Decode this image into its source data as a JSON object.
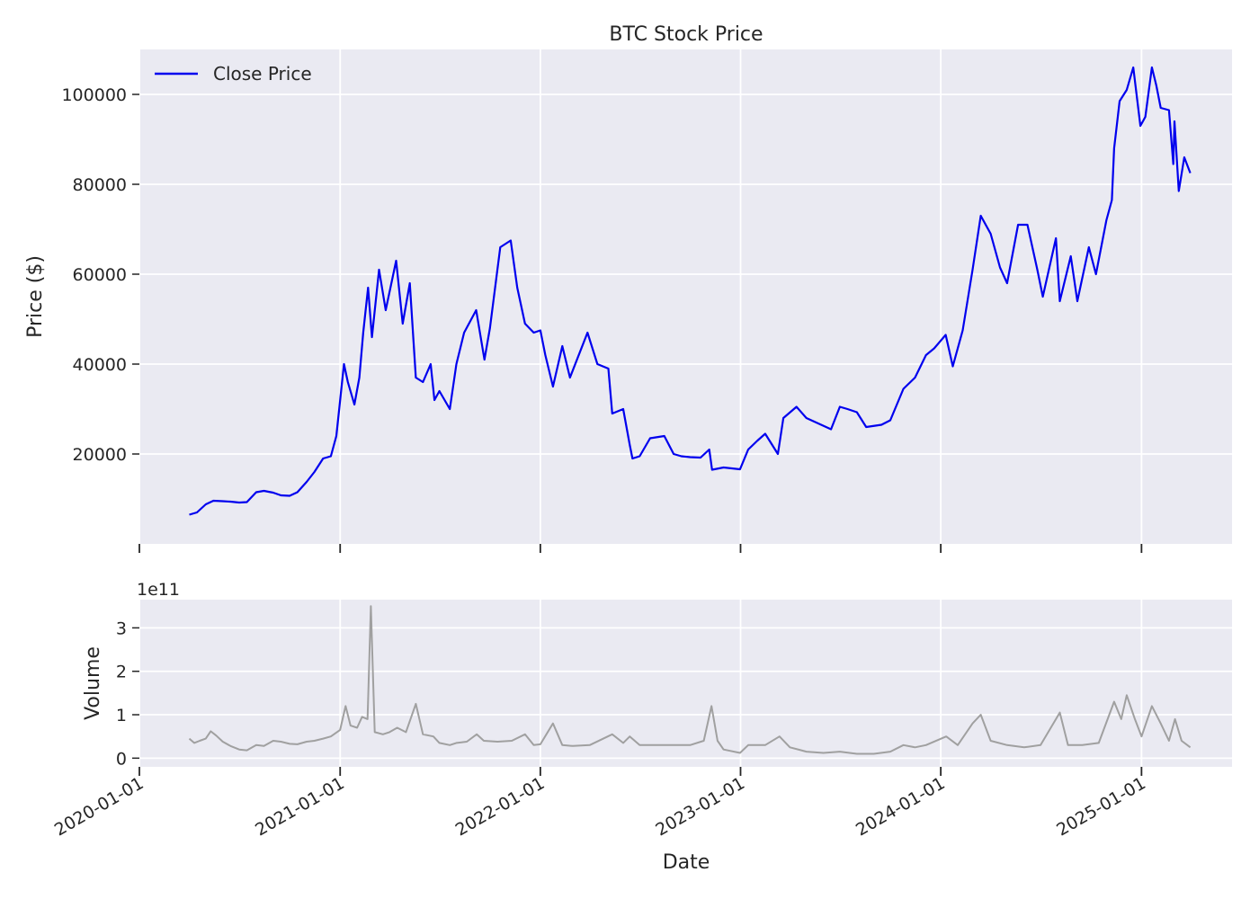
{
  "chart_data": {
    "type": "line",
    "title": "BTC Stock Price",
    "xlabel": "Date",
    "x_ticks": [
      "2020-01-01",
      "2021-01-01",
      "2022-01-01",
      "2023-01-01",
      "2024-01-01",
      "2025-01-01"
    ],
    "xlim": [
      "2020-01-01",
      "2025-06-15"
    ],
    "legend": {
      "position": "upper-left",
      "entries": [
        "Close Price"
      ]
    },
    "grid": true,
    "price_panel": {
      "ylabel": "Price ($)",
      "ylim": [
        0,
        110000
      ],
      "y_ticks": [
        "20000",
        "40000",
        "60000",
        "80000",
        "100000"
      ],
      "series": [
        {
          "name": "Close Price",
          "color": "#0000ee",
          "points": [
            [
              "2020-04-01",
              6500
            ],
            [
              "2020-04-15",
              7000
            ],
            [
              "2020-05-01",
              8800
            ],
            [
              "2020-05-15",
              9600
            ],
            [
              "2020-06-01",
              9500
            ],
            [
              "2020-06-15",
              9400
            ],
            [
              "2020-07-01",
              9200
            ],
            [
              "2020-07-15",
              9300
            ],
            [
              "2020-08-01",
              11500
            ],
            [
              "2020-08-15",
              11800
            ],
            [
              "2020-09-01",
              11400
            ],
            [
              "2020-09-15",
              10800
            ],
            [
              "2020-10-01",
              10700
            ],
            [
              "2020-10-15",
              11500
            ],
            [
              "2020-11-01",
              13800
            ],
            [
              "2020-11-15",
              16000
            ],
            [
              "2020-12-01",
              19000
            ],
            [
              "2020-12-15",
              19500
            ],
            [
              "2020-12-25",
              24000
            ],
            [
              "2021-01-08",
              40000
            ],
            [
              "2021-01-15",
              36000
            ],
            [
              "2021-01-27",
              31000
            ],
            [
              "2021-02-05",
              37000
            ],
            [
              "2021-02-12",
              47000
            ],
            [
              "2021-02-21",
              57000
            ],
            [
              "2021-02-28",
              46000
            ],
            [
              "2021-03-13",
              61000
            ],
            [
              "2021-03-25",
              52000
            ],
            [
              "2021-04-13",
              63000
            ],
            [
              "2021-04-25",
              49000
            ],
            [
              "2021-05-08",
              58000
            ],
            [
              "2021-05-19",
              37000
            ],
            [
              "2021-06-01",
              36000
            ],
            [
              "2021-06-15",
              40000
            ],
            [
              "2021-06-22",
              32000
            ],
            [
              "2021-07-01",
              34000
            ],
            [
              "2021-07-20",
              30000
            ],
            [
              "2021-08-01",
              40000
            ],
            [
              "2021-08-15",
              47000
            ],
            [
              "2021-09-06",
              52000
            ],
            [
              "2021-09-21",
              41000
            ],
            [
              "2021-10-01",
              48000
            ],
            [
              "2021-10-20",
              66000
            ],
            [
              "2021-11-08",
              67500
            ],
            [
              "2021-11-20",
              57000
            ],
            [
              "2021-12-04",
              49000
            ],
            [
              "2021-12-20",
              47000
            ],
            [
              "2022-01-01",
              47500
            ],
            [
              "2022-01-10",
              42000
            ],
            [
              "2022-01-24",
              35000
            ],
            [
              "2022-02-10",
              44000
            ],
            [
              "2022-02-24",
              37000
            ],
            [
              "2022-03-28",
              47000
            ],
            [
              "2022-04-15",
              40000
            ],
            [
              "2022-05-05",
              39000
            ],
            [
              "2022-05-12",
              29000
            ],
            [
              "2022-06-01",
              30000
            ],
            [
              "2022-06-13",
              22000
            ],
            [
              "2022-06-18",
              19000
            ],
            [
              "2022-07-01",
              19500
            ],
            [
              "2022-07-20",
              23500
            ],
            [
              "2022-08-15",
              24000
            ],
            [
              "2022-09-01",
              20000
            ],
            [
              "2022-09-15",
              19500
            ],
            [
              "2022-10-01",
              19300
            ],
            [
              "2022-10-20",
              19200
            ],
            [
              "2022-11-05",
              21000
            ],
            [
              "2022-11-10",
              16500
            ],
            [
              "2022-12-01",
              17000
            ],
            [
              "2022-12-31",
              16600
            ],
            [
              "2023-01-15",
              21000
            ],
            [
              "2023-02-01",
              23000
            ],
            [
              "2023-02-15",
              24500
            ],
            [
              "2023-03-10",
              20000
            ],
            [
              "2023-03-20",
              28000
            ],
            [
              "2023-04-13",
              30500
            ],
            [
              "2023-05-01",
              28000
            ],
            [
              "2023-06-15",
              25500
            ],
            [
              "2023-07-01",
              30500
            ],
            [
              "2023-07-15",
              30000
            ],
            [
              "2023-08-01",
              29300
            ],
            [
              "2023-08-18",
              26000
            ],
            [
              "2023-09-15",
              26500
            ],
            [
              "2023-10-01",
              27500
            ],
            [
              "2023-10-25",
              34500
            ],
            [
              "2023-11-15",
              37000
            ],
            [
              "2023-12-05",
              42000
            ],
            [
              "2023-12-20",
              43500
            ],
            [
              "2024-01-10",
              46500
            ],
            [
              "2024-01-23",
              39500
            ],
            [
              "2024-02-10",
              47500
            ],
            [
              "2024-02-28",
              61000
            ],
            [
              "2024-03-14",
              73000
            ],
            [
              "2024-04-01",
              69000
            ],
            [
              "2024-04-18",
              61500
            ],
            [
              "2024-05-01",
              58000
            ],
            [
              "2024-05-21",
              71000
            ],
            [
              "2024-06-07",
              71000
            ],
            [
              "2024-06-25",
              61000
            ],
            [
              "2024-07-05",
              55000
            ],
            [
              "2024-07-29",
              68000
            ],
            [
              "2024-08-05",
              54000
            ],
            [
              "2024-08-25",
              64000
            ],
            [
              "2024-09-06",
              54000
            ],
            [
              "2024-09-27",
              66000
            ],
            [
              "2024-10-10",
              60000
            ],
            [
              "2024-10-29",
              72000
            ],
            [
              "2024-11-08",
              76500
            ],
            [
              "2024-11-12",
              88000
            ],
            [
              "2024-11-22",
              98500
            ],
            [
              "2024-12-05",
              101000
            ],
            [
              "2024-12-17",
              106000
            ],
            [
              "2024-12-30",
              93000
            ],
            [
              "2025-01-08",
              95000
            ],
            [
              "2025-01-20",
              106000
            ],
            [
              "2025-01-28",
              102000
            ],
            [
              "2025-02-05",
              97000
            ],
            [
              "2025-02-20",
              96500
            ],
            [
              "2025-02-28",
              84500
            ],
            [
              "2025-03-02",
              94000
            ],
            [
              "2025-03-10",
              78500
            ],
            [
              "2025-03-20",
              86000
            ],
            [
              "2025-03-31",
              82500
            ]
          ]
        }
      ]
    },
    "volume_panel": {
      "ylabel": "Volume",
      "offset_text": "1e11",
      "ylim": [
        -0.2,
        3.65
      ],
      "y_ticks": [
        "0",
        "1",
        "2",
        "3"
      ],
      "series": [
        {
          "name": "Volume",
          "color": "#a0a0a0",
          "points": [
            [
              "2020-04-01",
              0.45
            ],
            [
              "2020-04-10",
              0.35
            ],
            [
              "2020-04-20",
              0.4
            ],
            [
              "2020-05-01",
              0.45
            ],
            [
              "2020-05-10",
              0.62
            ],
            [
              "2020-05-20",
              0.52
            ],
            [
              "2020-06-01",
              0.38
            ],
            [
              "2020-06-15",
              0.28
            ],
            [
              "2020-07-01",
              0.2
            ],
            [
              "2020-07-15",
              0.18
            ],
            [
              "2020-08-01",
              0.3
            ],
            [
              "2020-08-15",
              0.28
            ],
            [
              "2020-09-01",
              0.4
            ],
            [
              "2020-09-15",
              0.38
            ],
            [
              "2020-10-01",
              0.33
            ],
            [
              "2020-10-15",
              0.32
            ],
            [
              "2020-11-01",
              0.38
            ],
            [
              "2020-11-15",
              0.4
            ],
            [
              "2020-12-01",
              0.45
            ],
            [
              "2020-12-15",
              0.5
            ],
            [
              "2021-01-01",
              0.65
            ],
            [
              "2021-01-11",
              1.2
            ],
            [
              "2021-01-20",
              0.75
            ],
            [
              "2021-02-01",
              0.7
            ],
            [
              "2021-02-10",
              0.95
            ],
            [
              "2021-02-20",
              0.9
            ],
            [
              "2021-02-26",
              3.5
            ],
            [
              "2021-03-05",
              0.6
            ],
            [
              "2021-03-20",
              0.55
            ],
            [
              "2021-04-01",
              0.6
            ],
            [
              "2021-04-15",
              0.7
            ],
            [
              "2021-05-01",
              0.6
            ],
            [
              "2021-05-19",
              1.25
            ],
            [
              "2021-06-01",
              0.55
            ],
            [
              "2021-06-20",
              0.5
            ],
            [
              "2021-07-01",
              0.35
            ],
            [
              "2021-07-20",
              0.3
            ],
            [
              "2021-08-01",
              0.35
            ],
            [
              "2021-08-20",
              0.38
            ],
            [
              "2021-09-07",
              0.55
            ],
            [
              "2021-09-20",
              0.4
            ],
            [
              "2021-10-15",
              0.38
            ],
            [
              "2021-11-10",
              0.4
            ],
            [
              "2021-12-04",
              0.55
            ],
            [
              "2021-12-20",
              0.3
            ],
            [
              "2022-01-01",
              0.32
            ],
            [
              "2022-01-24",
              0.8
            ],
            [
              "2022-02-10",
              0.3
            ],
            [
              "2022-03-01",
              0.28
            ],
            [
              "2022-04-01",
              0.3
            ],
            [
              "2022-05-12",
              0.55
            ],
            [
              "2022-06-01",
              0.35
            ],
            [
              "2022-06-13",
              0.5
            ],
            [
              "2022-07-01",
              0.3
            ],
            [
              "2022-08-01",
              0.3
            ],
            [
              "2022-09-01",
              0.3
            ],
            [
              "2022-10-01",
              0.3
            ],
            [
              "2022-10-26",
              0.4
            ],
            [
              "2022-11-09",
              1.2
            ],
            [
              "2022-11-20",
              0.4
            ],
            [
              "2022-12-01",
              0.2
            ],
            [
              "2022-12-31",
              0.12
            ],
            [
              "2023-01-15",
              0.3
            ],
            [
              "2023-02-15",
              0.3
            ],
            [
              "2023-03-13",
              0.5
            ],
            [
              "2023-04-01",
              0.25
            ],
            [
              "2023-05-01",
              0.15
            ],
            [
              "2023-06-01",
              0.12
            ],
            [
              "2023-07-01",
              0.15
            ],
            [
              "2023-08-01",
              0.1
            ],
            [
              "2023-09-01",
              0.1
            ],
            [
              "2023-10-01",
              0.15
            ],
            [
              "2023-10-25",
              0.3
            ],
            [
              "2023-11-15",
              0.25
            ],
            [
              "2023-12-05",
              0.3
            ],
            [
              "2024-01-11",
              0.5
            ],
            [
              "2024-02-01",
              0.3
            ],
            [
              "2024-02-28",
              0.8
            ],
            [
              "2024-03-14",
              1.0
            ],
            [
              "2024-04-01",
              0.4
            ],
            [
              "2024-05-01",
              0.3
            ],
            [
              "2024-06-01",
              0.25
            ],
            [
              "2024-07-01",
              0.3
            ],
            [
              "2024-08-05",
              1.05
            ],
            [
              "2024-08-20",
              0.3
            ],
            [
              "2024-09-15",
              0.3
            ],
            [
              "2024-10-15",
              0.35
            ],
            [
              "2024-11-12",
              1.3
            ],
            [
              "2024-11-25",
              0.9
            ],
            [
              "2024-12-05",
              1.45
            ],
            [
              "2024-12-20",
              0.9
            ],
            [
              "2025-01-01",
              0.5
            ],
            [
              "2025-01-20",
              1.2
            ],
            [
              "2025-02-05",
              0.8
            ],
            [
              "2025-02-20",
              0.4
            ],
            [
              "2025-03-03",
              0.9
            ],
            [
              "2025-03-15",
              0.4
            ],
            [
              "2025-03-31",
              0.25
            ]
          ]
        }
      ]
    }
  }
}
